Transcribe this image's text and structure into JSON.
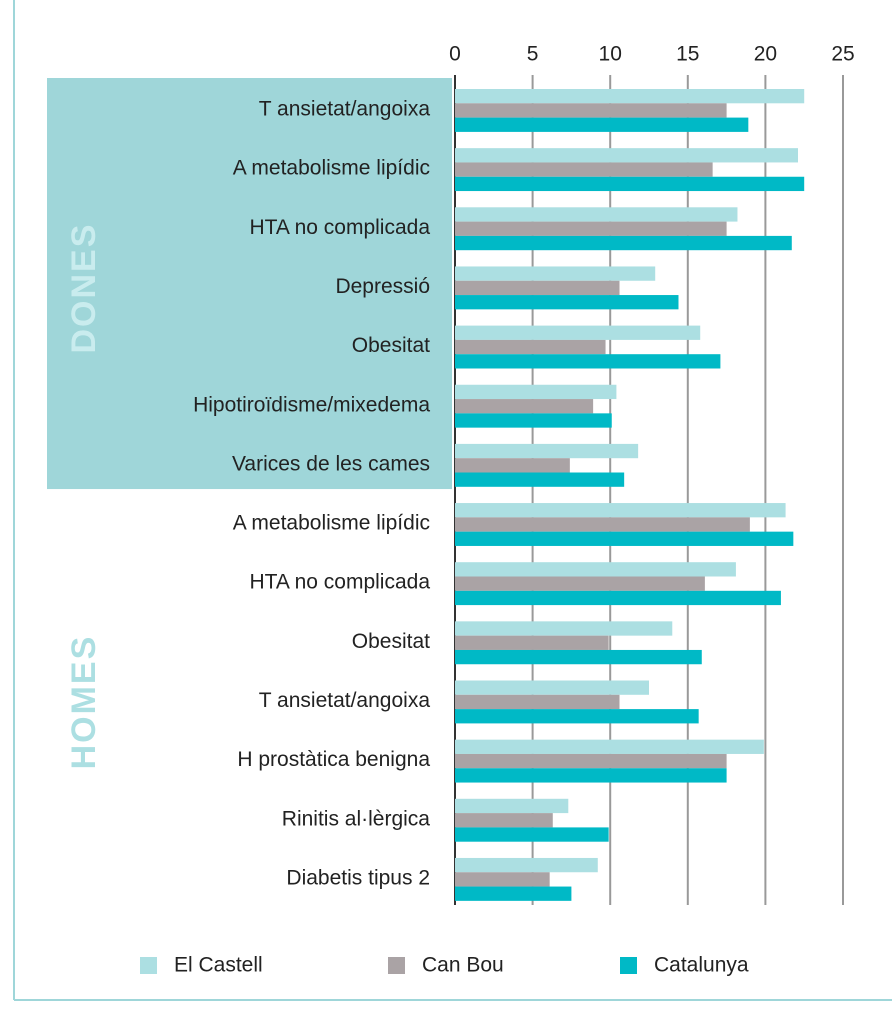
{
  "chart_data": {
    "type": "barh",
    "groups": [
      "DONES",
      "HOMES"
    ],
    "categories": [
      "T ansietat/angoixa",
      "A metabolisme lipídic",
      "HTA no complicada",
      "Depressió",
      "Obesitat",
      "Hipotiroïdisme/mixedema",
      "Varices de les cames",
      "A metabolisme lipídic",
      "HTA no complicada",
      "Obesitat",
      "T ansietat/angoixa",
      "H prostàtica benigna",
      "Rinitis al·lèrgica",
      "Diabetis tipus 2"
    ],
    "series": [
      {
        "name": "El Castell",
        "color": "#acdfe2",
        "values": [
          22.5,
          22.1,
          18.2,
          12.9,
          15.8,
          10.4,
          11.8,
          21.3,
          18.1,
          14.0,
          12.5,
          19.9,
          7.3,
          9.2
        ]
      },
      {
        "name": "Can Bou",
        "color": "#aaa3a5",
        "values": [
          17.5,
          16.6,
          17.5,
          10.6,
          9.7,
          8.9,
          7.4,
          19.0,
          16.1,
          9.9,
          10.6,
          17.5,
          6.3,
          6.1
        ]
      },
      {
        "name": "Catalunya",
        "color": "#00b9c6",
        "values": [
          18.9,
          22.5,
          21.7,
          14.4,
          17.1,
          10.1,
          10.9,
          21.8,
          21.0,
          15.9,
          15.7,
          17.5,
          9.9,
          7.5
        ]
      }
    ],
    "xlim": [
      0,
      25
    ],
    "xticks": [
      0,
      5,
      10,
      15,
      20,
      25
    ],
    "grid": true,
    "legend": "bottom"
  }
}
